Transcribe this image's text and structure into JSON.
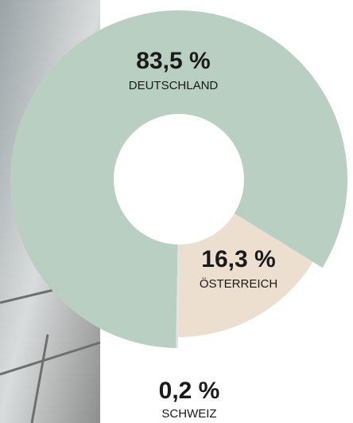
{
  "chart_data": {
    "type": "pie",
    "categories": [
      "DEUTSCHLAND",
      "ÖSTERREICH",
      "SCHWEIZ"
    ],
    "values": [
      83.5,
      16.3,
      0.2
    ],
    "value_labels": [
      "83,5 %",
      "16,3 %",
      "0,2 %"
    ],
    "colors": [
      "#b8cfc2",
      "#ecdfcf",
      "#e2e2e2"
    ]
  }
}
